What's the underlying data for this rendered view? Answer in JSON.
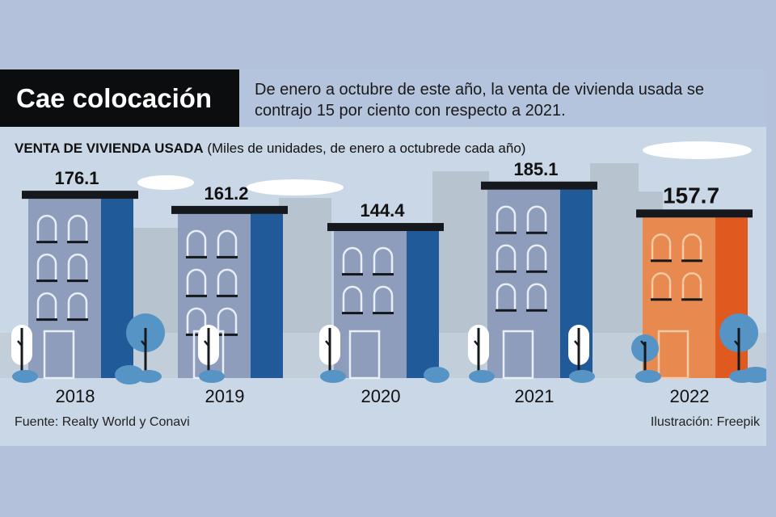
{
  "title": "Cae colocación",
  "subtitle": "De enero a octubre de este año, la venta de vivienda usada se contrajo 15 por ciento con respecto a 2021.",
  "source": "Fuente: Realty World y Conavi",
  "credit": "Ilustración: Freepik",
  "chart_data": {
    "type": "bar",
    "title": "VENTA DE VIVIENDA USADA",
    "subtitle": "(Miles de unidades, de enero a octubrede cada año)",
    "categories": [
      "2018",
      "2019",
      "2020",
      "2021",
      "2022"
    ],
    "values": [
      176.1,
      161.2,
      144.4,
      185.1,
      157.7
    ],
    "value_labels": [
      "176.1",
      "161.2",
      "144.4",
      "185.1",
      "157.7"
    ],
    "highlight": "2022",
    "colors": {
      "bar_main": "#8e9dbb",
      "bar_side": "#215a98",
      "highlight_main": "#e88a4f",
      "highlight_side": "#e05a1f",
      "roof": "#15181c"
    },
    "ylim": [
      0,
      200
    ]
  }
}
